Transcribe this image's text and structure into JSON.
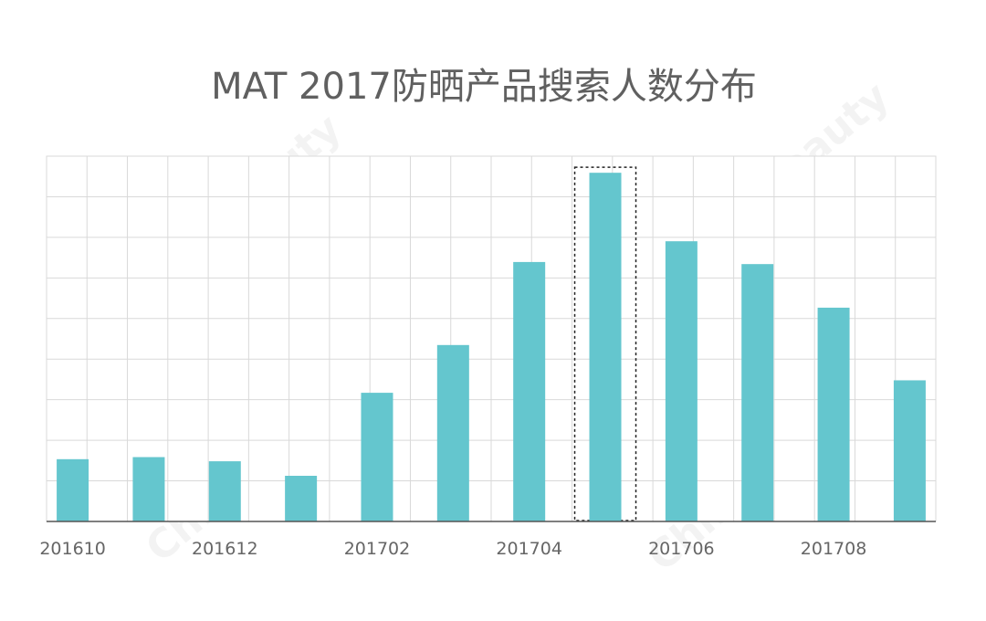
{
  "chart_data": {
    "type": "bar",
    "title": "MAT 2017防晒产品搜索人数分布",
    "categories": [
      "201610",
      "201611",
      "201612",
      "201701",
      "201702",
      "201703",
      "201704",
      "201705",
      "201706",
      "201707",
      "201708",
      "201709"
    ],
    "tick_labels": [
      "201610",
      "201612",
      "201702",
      "201704",
      "201706",
      "201708"
    ],
    "values": [
      15,
      15.5,
      14.5,
      11,
      31,
      42.5,
      62.5,
      84,
      67.5,
      62,
      51.5,
      34
    ],
    "ylim": [
      0,
      88
    ],
    "grid": true,
    "highlighted_category": "201705",
    "colors": {
      "bar": "#64c6ce",
      "grid": "#d9d9d9",
      "axis": "#555555",
      "title": "#606060",
      "tick": "#666666"
    }
  },
  "watermark": "ChinaBeauty"
}
